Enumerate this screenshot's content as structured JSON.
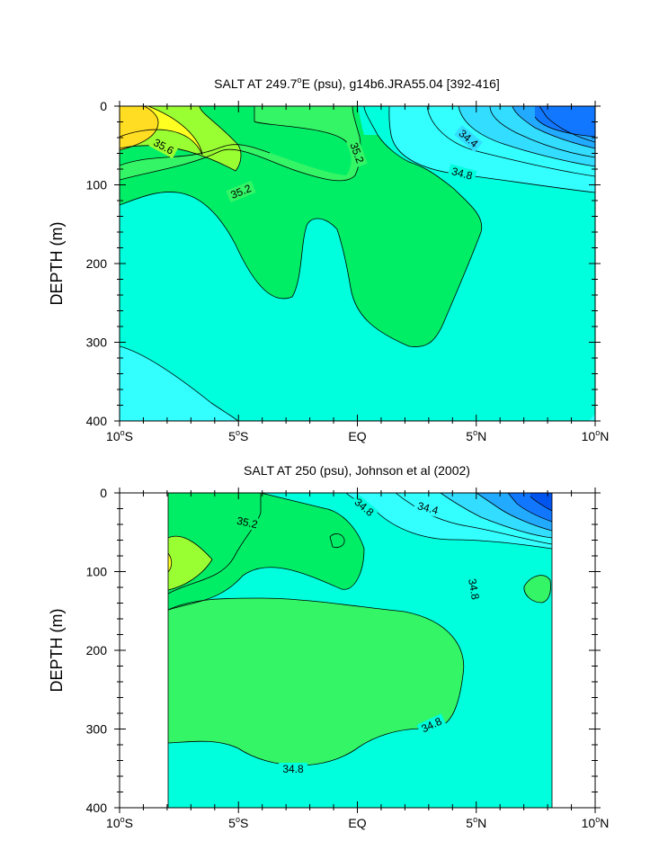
{
  "colors": {
    "c348": "#00ffdd",
    "c352": "#33f566",
    "c356": "#ffdd22",
    "c352b": "#00ee66",
    "c354": "#99ff33",
    "c355": "#ffff22",
    "c344": "#33ffff",
    "c340": "#33ddff",
    "c336": "#22aaff",
    "c332": "#1177ff",
    "c328": "#0055ee"
  },
  "chart_data": [
    {
      "type": "contour",
      "title": "SALT AT 249.7°E (psu), g14b6.JRA55.04 [392-416]",
      "title_parts": {
        "pre": "SALT AT 249.7",
        "sup": "o",
        "post": "E (psu), g14b6.JRA55.04 [392-416]"
      },
      "ylabel": "DEPTH (m)",
      "xlim": [
        -10,
        10
      ],
      "ylim": [
        400,
        0
      ],
      "x_ticks": [
        {
          "value": -10,
          "num": "10",
          "deg": "o",
          "hemi": "S"
        },
        {
          "value": -5,
          "num": "5",
          "deg": "o",
          "hemi": "S"
        },
        {
          "value": 0,
          "num": "EQ",
          "deg": "",
          "hemi": ""
        },
        {
          "value": 5,
          "num": "5",
          "deg": "o",
          "hemi": "N"
        },
        {
          "value": 10,
          "num": "10",
          "deg": "o",
          "hemi": "N"
        }
      ],
      "y_ticks": [
        "0",
        "100",
        "200",
        "300",
        "400"
      ],
      "contour_labels": [
        "35.6",
        "35.2",
        "35.2",
        "34.4",
        "34.8"
      ],
      "data_x_range": [
        -10,
        10
      ]
    },
    {
      "type": "contour",
      "title": "SALT AT 250 (psu), Johnson et al (2002)",
      "ylabel": "DEPTH (m)",
      "xlim": [
        -10,
        10
      ],
      "ylim": [
        400,
        0
      ],
      "x_ticks": [
        {
          "value": -10,
          "num": "10",
          "deg": "o",
          "hemi": "S"
        },
        {
          "value": -5,
          "num": "5",
          "deg": "o",
          "hemi": "S"
        },
        {
          "value": 0,
          "num": "EQ",
          "deg": "",
          "hemi": ""
        },
        {
          "value": 5,
          "num": "5",
          "deg": "o",
          "hemi": "N"
        },
        {
          "value": 10,
          "num": "10",
          "deg": "o",
          "hemi": "N"
        }
      ],
      "y_ticks": [
        "0",
        "100",
        "200",
        "300",
        "400"
      ],
      "contour_labels": [
        "35.2",
        "34.8",
        "34.4",
        "34.8",
        "34.8",
        "34.8"
      ],
      "data_x_range": [
        -8,
        8
      ]
    }
  ]
}
